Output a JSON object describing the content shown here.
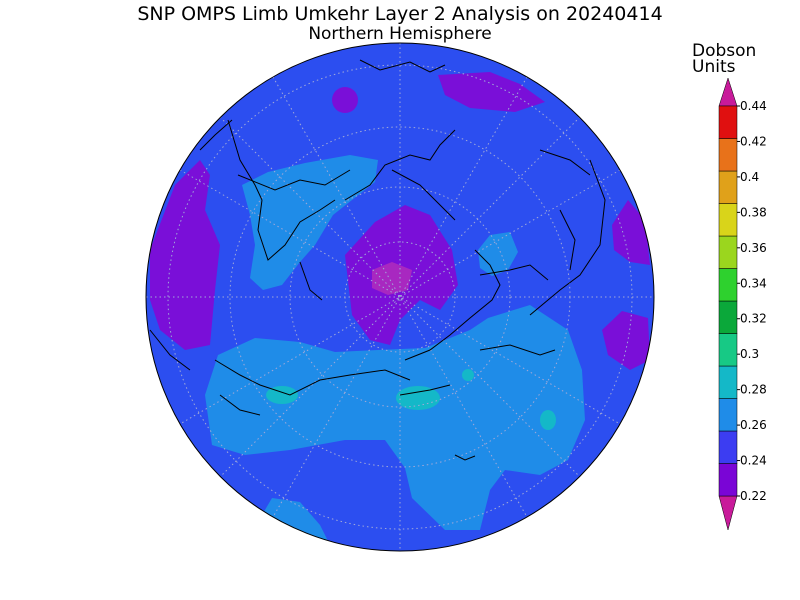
{
  "title": "SNP OMPS Limb Umkehr Layer 2 Analysis on 20240414",
  "subtitle": "Northern Hemisphere",
  "units": [
    "Dobson",
    "Units"
  ],
  "colorbar": {
    "levels": [
      "0.22",
      "0.24",
      "0.26",
      "0.28",
      "0.3",
      "0.32",
      "0.34",
      "0.36",
      "0.38",
      "0.4",
      "0.42",
      "0.44"
    ],
    "colors": [
      "#7a05d6",
      "#3c3df2",
      "#1f8ce8",
      "#14b8c8",
      "#17c985",
      "#0ba83a",
      "#2ed12e",
      "#9bd61e",
      "#d9d41a",
      "#e0a11a",
      "#e8721a",
      "#e01010"
    ],
    "top_color": "#c81a9a",
    "bottom_color": "#c81a9a"
  },
  "map": {
    "projection": "north polar stereographic",
    "background_color": "#2c4ef0"
  }
}
